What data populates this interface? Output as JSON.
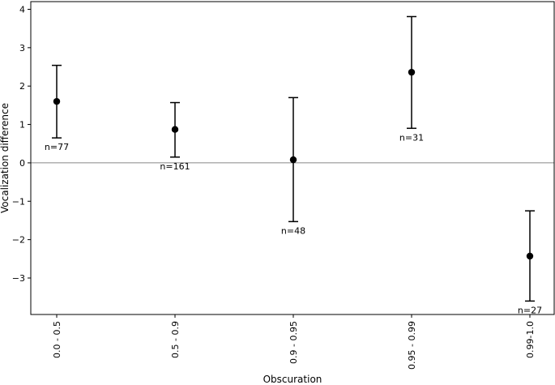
{
  "chart_data": {
    "type": "scatter",
    "title": "",
    "xlabel": "Obscuration",
    "ylabel": "Vocalization difference",
    "categories": [
      "0.0 - 0.5",
      "0.5 - 0.9",
      "0.9 - 0.95",
      "0.95 - 0.99",
      "0.99-1.0"
    ],
    "ylim": [
      -3.95,
      4.2
    ],
    "yticks": [
      "4",
      "3",
      "2",
      "1",
      "0",
      "−1",
      "−2",
      "−3"
    ],
    "ytick_values": [
      4,
      3,
      2,
      1,
      0,
      -1,
      -2,
      -3
    ],
    "reference_line": 0,
    "grid": false,
    "series": [
      {
        "values": [
          1.6,
          0.87,
          0.08,
          2.36,
          -2.43
        ],
        "error_low": [
          0.65,
          0.15,
          -1.53,
          0.9,
          -3.6
        ],
        "error_high": [
          2.54,
          1.57,
          1.7,
          3.81,
          -1.25
        ],
        "annotations": [
          "n=77",
          "n=161",
          "n=48",
          "n=31",
          "n=27"
        ]
      }
    ],
    "colors": {
      "marker": "#000000",
      "errorbar": "#000000",
      "reference_line": "#888888",
      "axes": "#000000"
    }
  }
}
